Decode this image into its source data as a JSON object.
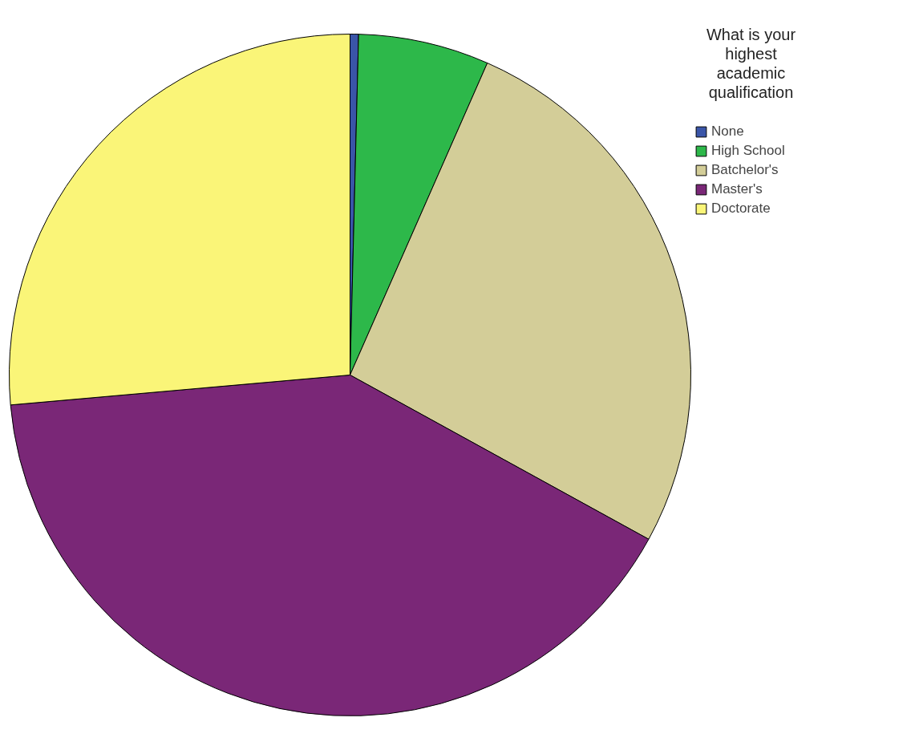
{
  "chart_data": {
    "type": "pie",
    "legend_title": "What is your highest academic qualification",
    "legend": "top right",
    "categories": [
      "None",
      "High School",
      "Batchelor's",
      "Master's",
      "Doctorate"
    ],
    "values": [
      0.4,
      6.2,
      26.4,
      40.6,
      26.4
    ],
    "colors": [
      "#3a55a8",
      "#2db84a",
      "#d3cd98",
      "#7a2777",
      "#faf578"
    ]
  }
}
